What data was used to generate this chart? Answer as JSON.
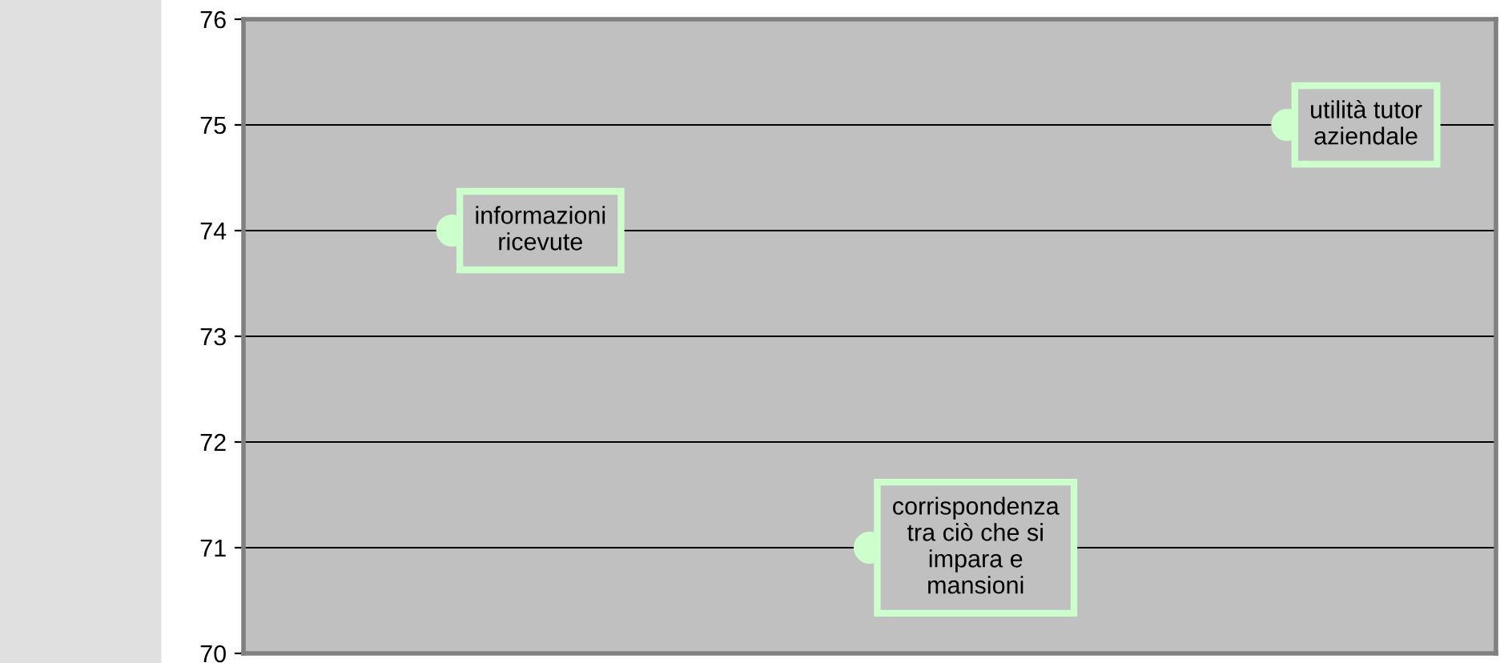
{
  "chart_data": {
    "type": "scatter",
    "categories": [
      null,
      null,
      null
    ],
    "series": [
      {
        "color": "#ccffcc",
        "values": [
          74,
          71,
          75
        ]
      }
    ],
    "annotations": [
      "informazioni\nricevute",
      "corrispondenza\ntra ciò che si\nimpara e\nmansioni",
      "utilità tutor\naziendale"
    ],
    "ylim": [
      70,
      76
    ],
    "yticks": [
      70,
      71,
      72,
      73,
      74,
      75,
      76
    ],
    "grid": "y",
    "marker": "circle",
    "tick_labels": "y",
    "legend": false
  }
}
